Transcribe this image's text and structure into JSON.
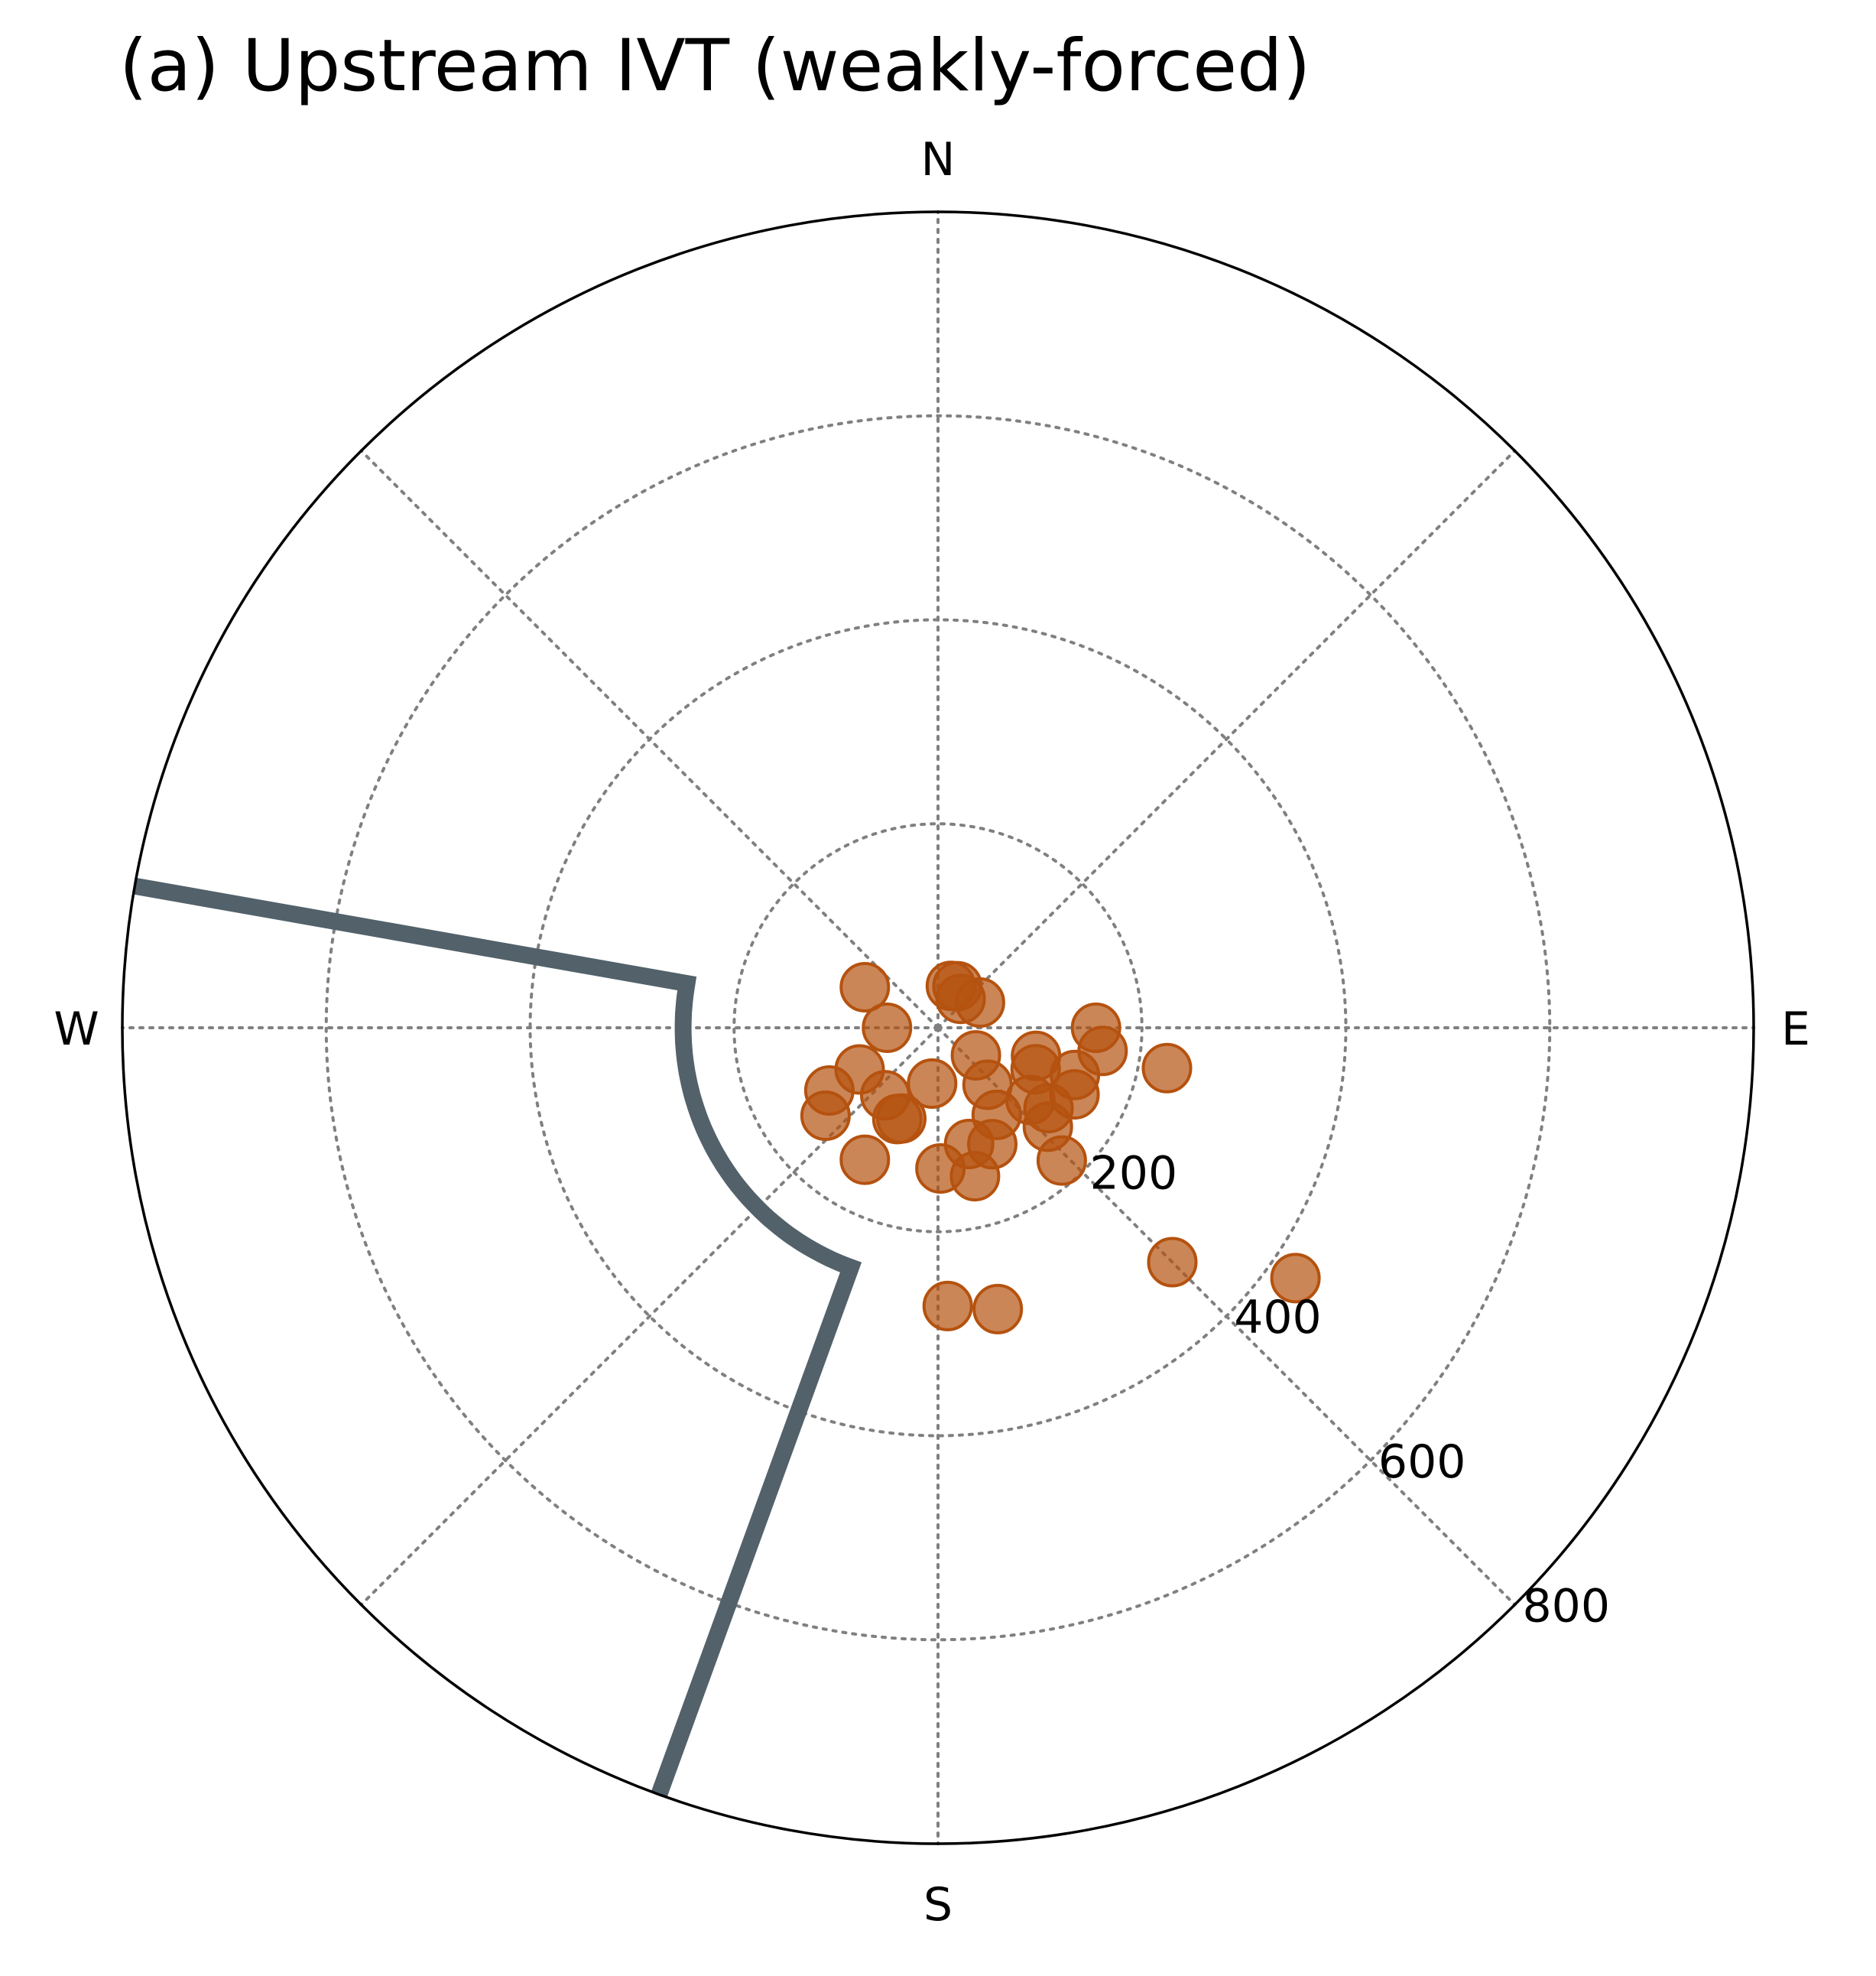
{
  "chart_data": {
    "type": "scatter",
    "projection": "polar",
    "title": "(a) Upstream IVT (weakly-forced)",
    "theta_zero": "N",
    "theta_direction": "clockwise",
    "compass_labels": [
      "N",
      "E",
      "S",
      "W"
    ],
    "r_ticks": [
      200,
      400,
      600,
      800
    ],
    "r_tick_labels": [
      "200",
      "400",
      "600",
      "800"
    ],
    "rlim": [
      0,
      800
    ],
    "grid": true,
    "radial_grid_angles_deg": [
      0,
      45,
      90,
      135,
      180,
      225,
      270,
      315
    ],
    "colors": {
      "points": "#b5520f",
      "boundary_line": "#52616a",
      "grid": "#808080",
      "frame": "#000000"
    },
    "series": [
      {
        "kind": "points",
        "points": [
          {
            "theta": 168,
            "r": 282
          },
          {
            "theta": 178,
            "r": 273
          },
          {
            "theta": 135,
            "r": 325
          },
          {
            "theta": 125,
            "r": 428
          },
          {
            "theta": 100,
            "r": 228
          },
          {
            "theta": 98,
            "r": 163
          },
          {
            "theta": 109,
            "r": 142
          },
          {
            "theta": 116,
            "r": 149
          },
          {
            "theta": 128,
            "r": 115
          },
          {
            "theta": 126,
            "r": 134
          },
          {
            "theta": 132,
            "r": 145
          },
          {
            "theta": 137,
            "r": 178
          },
          {
            "theta": 166,
            "r": 150
          },
          {
            "theta": 179,
            "r": 138
          },
          {
            "theta": 165,
            "r": 118
          },
          {
            "theta": 155,
            "r": 126
          },
          {
            "theta": 146,
            "r": 103
          },
          {
            "theta": 113,
            "r": 104
          },
          {
            "theta": 139,
            "r": 74
          },
          {
            "theta": 126,
            "r": 46
          },
          {
            "theta": 106,
            "r": 100
          },
          {
            "theta": 90,
            "r": 155
          },
          {
            "theta": 204,
            "r": 98
          },
          {
            "theta": 202,
            "r": 96
          },
          {
            "theta": 218,
            "r": 84
          },
          {
            "theta": 242,
            "r": 87
          },
          {
            "theta": 232,
            "r": 140
          },
          {
            "theta": 240,
            "r": 123
          },
          {
            "theta": 209,
            "r": 148
          },
          {
            "theta": 299,
            "r": 82
          },
          {
            "theta": 270,
            "r": 50
          },
          {
            "theta": 17,
            "r": 43
          },
          {
            "theta": 25,
            "r": 45
          },
          {
            "theta": 38,
            "r": 36
          },
          {
            "theta": 59,
            "r": 48
          },
          {
            "theta": 186,
            "r": 55
          }
        ]
      },
      {
        "kind": "boundary",
        "segments": [
          {
            "shape": "ray",
            "theta": 280,
            "r_from": 800,
            "r_to": 250
          },
          {
            "shape": "arc",
            "r": 250,
            "theta_from": 280,
            "theta_to": 200
          },
          {
            "shape": "ray",
            "theta": 200,
            "r_from": 250,
            "r_to": 800
          }
        ]
      }
    ]
  }
}
